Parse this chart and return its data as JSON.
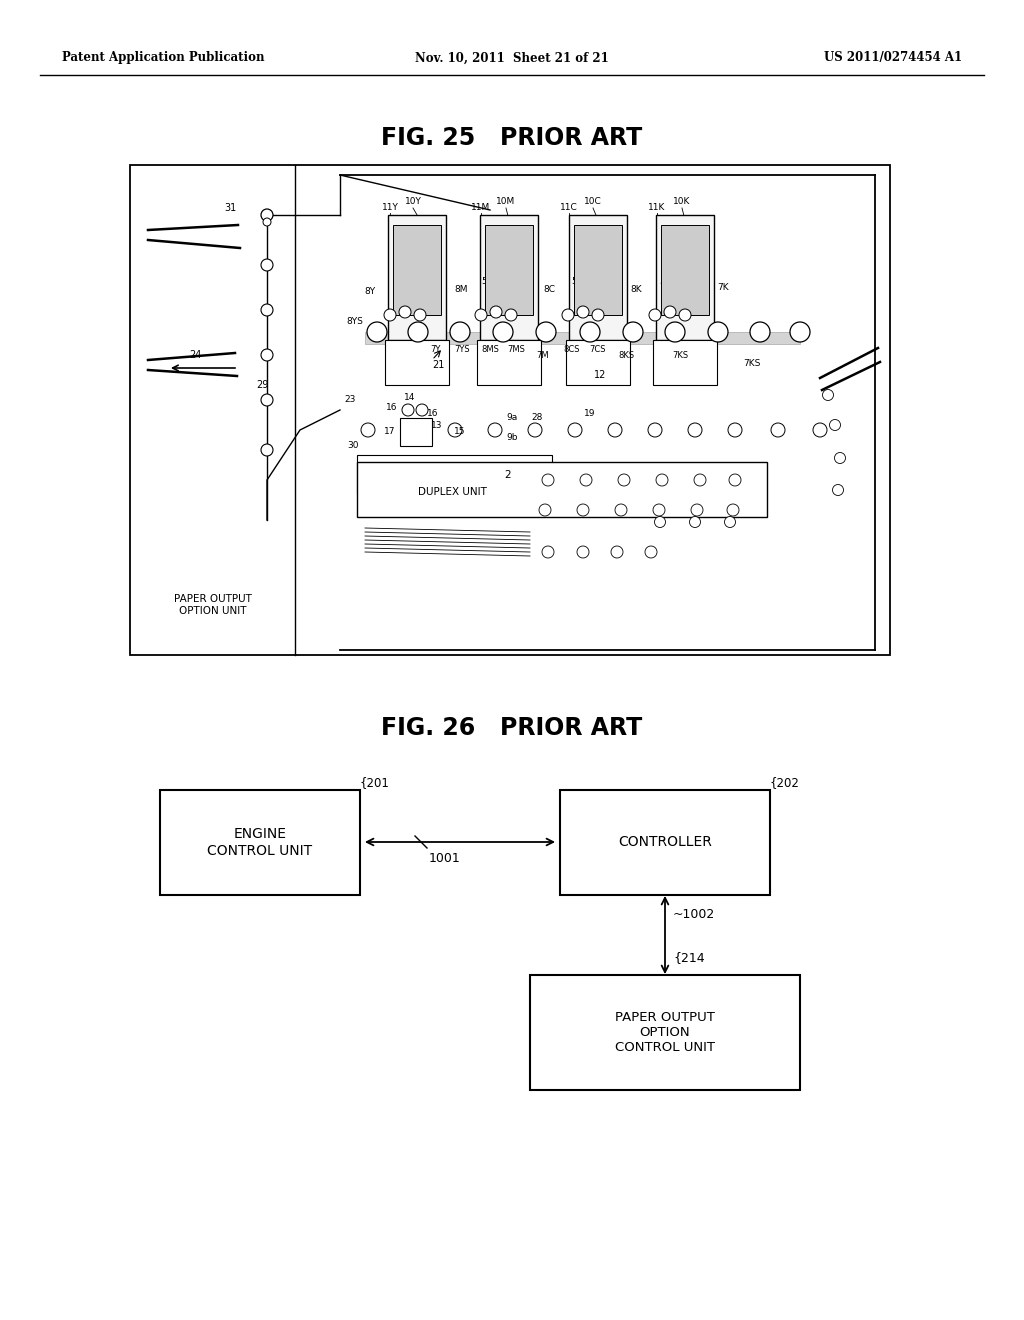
{
  "bg_color": "#ffffff",
  "header_left": "Patent Application Publication",
  "header_mid": "Nov. 10, 2011  Sheet 21 of 21",
  "header_right": "US 2011/0274454 A1",
  "fig25_title": "FIG. 25   PRIOR ART",
  "fig26_title": "FIG. 26   PRIOR ART",
  "paper_output_label": "PAPER OUTPUT\nOPTION UNIT",
  "duplex_unit_label": "DUPLEX UNIT",
  "engine_control_unit_label": "ENGINE\nCONTROL UNIT",
  "controller_label": "CONTROLLER",
  "paper_output_option_label": "PAPER OUTPUT\nOPTION\nCONTROL UNIT",
  "label_201": "201",
  "label_202": "202",
  "label_214": "214",
  "label_1001": "1001",
  "label_1002": "1002"
}
